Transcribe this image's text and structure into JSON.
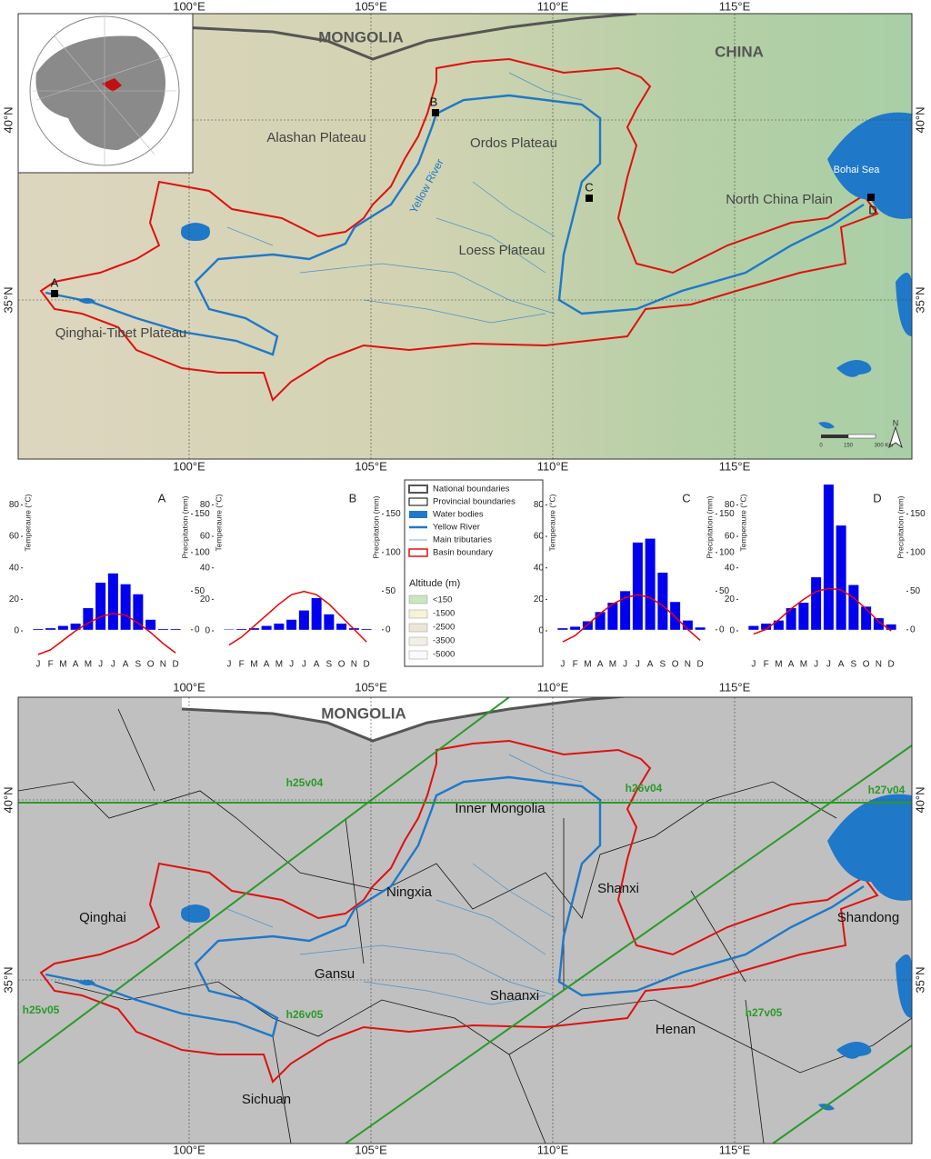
{
  "graticule": {
    "lon": [
      "100°E",
      "105°E",
      "110°E",
      "115°E"
    ],
    "lat": [
      "40°N",
      "35°N"
    ]
  },
  "top_map": {
    "countries": [
      "MONGOLIA",
      "CHINA"
    ],
    "regions": [
      "Alashan Plateau",
      "Ordos Plateau",
      "Loess Plateau",
      "North China Plain",
      "Qinghai-Tibet Plateau"
    ],
    "river": "Yellow River",
    "sea": "Bohai Sea",
    "stations": [
      "A",
      "B",
      "C",
      "D"
    ],
    "scale": [
      "0",
      "150",
      "300 Km"
    ],
    "north": "N"
  },
  "legend": {
    "items": [
      "National boundaries",
      "Provincial boundaries",
      "Water bodies",
      "Yellow River",
      "Main tributaries",
      "Basin boundary"
    ],
    "altitude_title": "Altitude (m)",
    "altitude_classes": [
      "<150",
      "-1500",
      "-2500",
      "-3500",
      "-5000"
    ]
  },
  "chart_data": [
    {
      "type": "bar",
      "title": "A",
      "categories": [
        "J",
        "F",
        "M",
        "A",
        "M",
        "J",
        "J",
        "A",
        "S",
        "O",
        "N",
        "D"
      ],
      "ylabel": "Temperaure (°C)",
      "y2label": "Precipitation (mm)",
      "ylim": [
        -15,
        86
      ],
      "yticks": [
        0,
        20,
        40,
        60,
        80
      ],
      "y2lim": [
        -32,
        174
      ],
      "y2ticks": [
        0,
        50,
        100,
        150
      ],
      "series": [
        {
          "type": "bar",
          "axis": "y2",
          "color": "#0000ee",
          "values": [
            1,
            2,
            5,
            8,
            28,
            61,
            73,
            59,
            46,
            13,
            1,
            1
          ]
        },
        {
          "type": "line",
          "color": "#ee0000",
          "values": [
            -15,
            -12,
            -6,
            0,
            5,
            9,
            11,
            10,
            5,
            -1,
            -8,
            -14
          ]
        }
      ]
    },
    {
      "type": "bar",
      "title": "B",
      "categories": [
        "J",
        "F",
        "M",
        "A",
        "M",
        "J",
        "J",
        "A",
        "S",
        "O",
        "N",
        "D"
      ],
      "ylabel": "Temperaure (°C)",
      "y2label": "Precipitation (mm)",
      "ylim": [
        -15,
        86
      ],
      "yticks": [
        0,
        20,
        40,
        60,
        80
      ],
      "y2lim": [
        -32,
        174
      ],
      "y2ticks": [
        0,
        50,
        100,
        150
      ],
      "series": [
        {
          "type": "bar",
          "axis": "y2",
          "color": "#0000ee",
          "values": [
            0.5,
            1,
            2,
            5,
            8,
            13,
            25,
            41,
            20,
            8,
            2,
            1
          ]
        },
        {
          "type": "line",
          "color": "#ee0000",
          "values": [
            -9,
            -4,
            3,
            10,
            17,
            23,
            25,
            23,
            17,
            9,
            1,
            -7
          ]
        }
      ]
    },
    {
      "type": "bar",
      "title": "C",
      "categories": [
        "J",
        "F",
        "M",
        "A",
        "M",
        "J",
        "J",
        "A",
        "S",
        "O",
        "N",
        "D"
      ],
      "ylabel": "Temperaure (°C)",
      "y2label": "Precipitation (mm)",
      "ylim": [
        -15,
        86
      ],
      "yticks": [
        0,
        20,
        40,
        60,
        80
      ],
      "y2lim": [
        -32,
        174
      ],
      "y2ticks": [
        0,
        50,
        100,
        150
      ],
      "series": [
        {
          "type": "bar",
          "axis": "y2",
          "color": "#0000ee",
          "values": [
            2,
            4,
            11,
            23,
            35,
            50,
            113,
            118,
            74,
            36,
            12,
            3
          ]
        },
        {
          "type": "line",
          "color": "#ee0000",
          "values": [
            -7,
            -3,
            4,
            11,
            17,
            21,
            23,
            21,
            16,
            9,
            1,
            -6
          ]
        }
      ]
    },
    {
      "type": "bar",
      "title": "D",
      "categories": [
        "J",
        "F",
        "M",
        "A",
        "M",
        "J",
        "J",
        "A",
        "S",
        "O",
        "N",
        "D"
      ],
      "ylabel": "Temperaure (°C)",
      "y2label": "Precipitation (mm)",
      "ylim": [
        -15,
        86
      ],
      "yticks": [
        0,
        20,
        40,
        60,
        80
      ],
      "y2lim": [
        -32,
        174
      ],
      "y2ticks": [
        0,
        50,
        100,
        150
      ],
      "series": [
        {
          "type": "bar",
          "axis": "y2",
          "color": "#0000ee",
          "values": [
            5,
            8,
            12,
            28,
            35,
            68,
            188,
            135,
            58,
            30,
            15,
            7
          ]
        },
        {
          "type": "line",
          "color": "#ee0000",
          "values": [
            -2,
            1,
            7,
            14,
            20,
            25,
            27,
            26,
            21,
            14,
            6,
            0
          ]
        }
      ]
    }
  ],
  "bottom_map": {
    "country": "MONGOLIA",
    "provinces": [
      "Qinghai",
      "Gansu",
      "Ningxia",
      "Inner Mongolia",
      "Shanxi",
      "Shaanxi",
      "Henan",
      "Shandong",
      "Sichuan"
    ],
    "tiles": [
      "h25v04",
      "h26v04",
      "h27v04",
      "h25v05",
      "h26v05",
      "h27v05"
    ]
  }
}
